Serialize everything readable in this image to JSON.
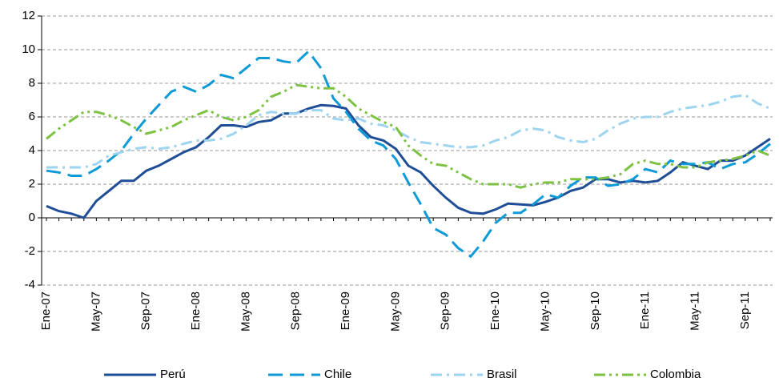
{
  "chart_data": {
    "type": "line",
    "categories": [
      "Ene-07",
      null,
      null,
      null,
      "May-07",
      null,
      null,
      null,
      "Sep-07",
      null,
      null,
      null,
      "Ene-08",
      null,
      null,
      null,
      "May-08",
      null,
      null,
      null,
      "Sep-08",
      null,
      null,
      null,
      "Ene-09",
      null,
      null,
      null,
      "May-09",
      null,
      null,
      null,
      "Sep-09",
      null,
      null,
      null,
      "Ene-10",
      null,
      null,
      null,
      "May-10",
      null,
      null,
      null,
      "Sep-10",
      null,
      null,
      null,
      "Ene-11",
      null,
      null,
      null,
      "May-11",
      null,
      null,
      null,
      "Sep-11",
      null,
      null
    ],
    "series": [
      {
        "name": "Perú",
        "color": "#1f4e96",
        "dash": "solid",
        "values": [
          0.7,
          0.4,
          0.25,
          0,
          1.0,
          1.6,
          2.2,
          2.2,
          2.8,
          3.1,
          3.5,
          3.9,
          4.2,
          4.8,
          5.5,
          5.5,
          5.4,
          5.7,
          5.8,
          6.2,
          6.2,
          6.5,
          6.7,
          6.65,
          6.5,
          5.5,
          4.8,
          4.6,
          4.1,
          3.1,
          2.7,
          1.9,
          1.2,
          0.6,
          0.3,
          0.25,
          0.5,
          0.85,
          0.8,
          0.75,
          0.95,
          1.2,
          1.6,
          1.8,
          2.3,
          2.3,
          2.1,
          2.2,
          2.1,
          2.2,
          2.7,
          3.3,
          3.1,
          2.9,
          3.4,
          3.4,
          3.7,
          4.2,
          4.7
        ]
      },
      {
        "name": "Chile",
        "color": "#0d9ad6",
        "dash": "dashed",
        "values": [
          2.8,
          2.7,
          2.5,
          2.5,
          2.9,
          3.4,
          4.0,
          5.0,
          5.9,
          6.7,
          7.5,
          7.8,
          7.5,
          7.9,
          8.5,
          8.3,
          8.9,
          9.5,
          9.5,
          9.3,
          9.2,
          9.9,
          8.9,
          7.1,
          6.3,
          5.3,
          4.6,
          4.3,
          3.5,
          2.1,
          0.8,
          -0.6,
          -1.0,
          -1.8,
          -2.3,
          -1.4,
          -0.3,
          0.3,
          0.3,
          0.8,
          1.4,
          1.2,
          1.9,
          2.4,
          2.4,
          1.9,
          2.0,
          2.3,
          2.9,
          2.7,
          3.4,
          3.2,
          3.2,
          3.3,
          2.9,
          3.2,
          3.3,
          3.8,
          4.4
        ]
      },
      {
        "name": "Brasil",
        "color": "#9dd4f0",
        "dash": "dash-dot",
        "values": [
          3.0,
          3.0,
          3.0,
          3.0,
          3.2,
          3.7,
          3.9,
          4.1,
          4.2,
          4.1,
          4.2,
          4.4,
          4.6,
          4.6,
          4.7,
          5.0,
          5.5,
          6.1,
          6.3,
          6.2,
          6.2,
          6.4,
          6.4,
          5.9,
          5.8,
          5.9,
          5.6,
          5.5,
          5.2,
          4.8,
          4.5,
          4.4,
          4.3,
          4.2,
          4.2,
          4.3,
          4.6,
          4.8,
          5.2,
          5.3,
          5.2,
          4.8,
          4.6,
          4.5,
          4.7,
          5.2,
          5.6,
          5.9,
          6.0,
          6.0,
          6.3,
          6.5,
          6.6,
          6.7,
          6.9,
          7.2,
          7.3,
          6.8,
          6.5
        ]
      },
      {
        "name": "Colombia",
        "color": "#7dc242",
        "dash": "dash-dot-dot",
        "values": [
          4.7,
          5.3,
          5.8,
          6.3,
          6.3,
          6.1,
          5.8,
          5.4,
          5.0,
          5.2,
          5.4,
          5.8,
          6.1,
          6.4,
          6.0,
          5.8,
          6.0,
          6.4,
          7.2,
          7.5,
          7.9,
          7.8,
          7.7,
          7.7,
          7.2,
          6.5,
          6.1,
          5.7,
          5.4,
          4.3,
          3.7,
          3.2,
          3.1,
          2.7,
          2.3,
          2.0,
          2.0,
          2.0,
          1.8,
          2.0,
          2.1,
          2.1,
          2.3,
          2.3,
          2.3,
          2.4,
          2.6,
          3.2,
          3.4,
          3.2,
          3.2,
          3.0,
          3.0,
          3.3,
          3.4,
          3.5,
          3.7,
          4.0,
          3.7
        ]
      }
    ],
    "ylim": [
      -4,
      12
    ],
    "yticks": [
      -4,
      -2,
      0,
      2,
      4,
      6,
      8,
      10,
      12
    ],
    "grid": true,
    "legend": "bottom"
  }
}
